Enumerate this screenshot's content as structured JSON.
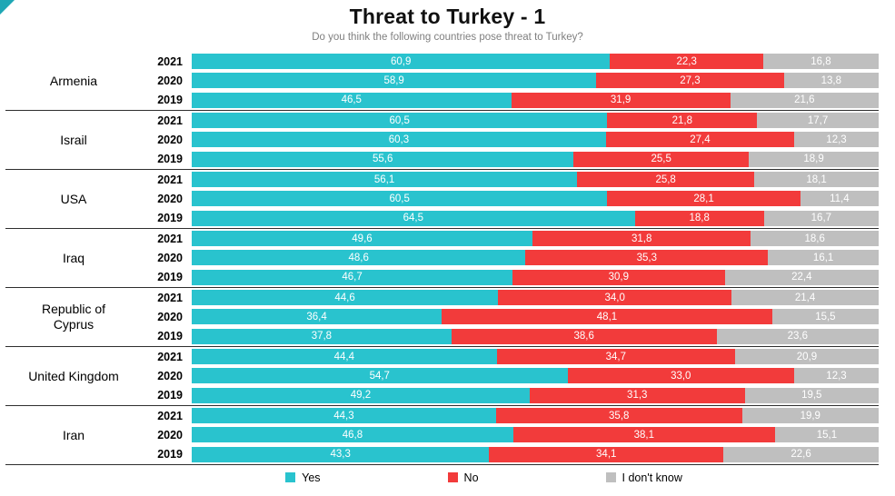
{
  "page": {
    "background": "#ffffff",
    "accent_teal": "#1FA7B5"
  },
  "chart_data": {
    "type": "bar",
    "variant": "horizontal-stacked-100pct",
    "title": "Threat to Turkey - 1",
    "subtitle": "Do you think the following countries pose threat to Turkey?",
    "xlim": [
      0,
      100
    ],
    "legend_position": "bottom",
    "grid": false,
    "number_format": "comma-decimal",
    "series": [
      {
        "key": "yes",
        "name": "Yes",
        "color": "#29C3CE"
      },
      {
        "key": "no",
        "name": "No",
        "color": "#F23B3B"
      },
      {
        "key": "dont-know",
        "name": "I don't know",
        "color": "#BFBFBF"
      }
    ],
    "groups": [
      {
        "country": "Armenia",
        "rows": [
          {
            "year": "2021",
            "values": [
              60.9,
              22.3,
              16.8
            ]
          },
          {
            "year": "2020",
            "values": [
              58.9,
              27.3,
              13.8
            ]
          },
          {
            "year": "2019",
            "values": [
              46.5,
              31.9,
              21.6
            ]
          }
        ]
      },
      {
        "country": "Israil",
        "rows": [
          {
            "year": "2021",
            "values": [
              60.5,
              21.8,
              17.7
            ]
          },
          {
            "year": "2020",
            "values": [
              60.3,
              27.4,
              12.3
            ]
          },
          {
            "year": "2019",
            "values": [
              55.6,
              25.5,
              18.9
            ]
          }
        ]
      },
      {
        "country": "USA",
        "rows": [
          {
            "year": "2021",
            "values": [
              56.1,
              25.8,
              18.1
            ]
          },
          {
            "year": "2020",
            "values": [
              60.5,
              28.1,
              11.4
            ]
          },
          {
            "year": "2019",
            "values": [
              64.5,
              18.8,
              16.7
            ]
          }
        ]
      },
      {
        "country": "Iraq",
        "rows": [
          {
            "year": "2021",
            "values": [
              49.6,
              31.8,
              18.6
            ]
          },
          {
            "year": "2020",
            "values": [
              48.6,
              35.3,
              16.1
            ]
          },
          {
            "year": "2019",
            "values": [
              46.7,
              30.9,
              22.4
            ]
          }
        ]
      },
      {
        "country": "Republic of Cyprus",
        "rows": [
          {
            "year": "2021",
            "values": [
              44.6,
              34.0,
              21.4
            ]
          },
          {
            "year": "2020",
            "values": [
              36.4,
              48.1,
              15.5
            ]
          },
          {
            "year": "2019",
            "values": [
              37.8,
              38.6,
              23.6
            ]
          }
        ]
      },
      {
        "country": "United Kingdom",
        "rows": [
          {
            "year": "2021",
            "values": [
              44.4,
              34.7,
              20.9
            ]
          },
          {
            "year": "2020",
            "values": [
              54.7,
              33.0,
              12.3
            ]
          },
          {
            "year": "2019",
            "values": [
              49.2,
              31.3,
              19.5
            ]
          }
        ]
      },
      {
        "country": "Iran",
        "rows": [
          {
            "year": "2021",
            "values": [
              44.3,
              35.8,
              19.9
            ]
          },
          {
            "year": "2020",
            "values": [
              46.8,
              38.1,
              15.1
            ]
          },
          {
            "year": "2019",
            "values": [
              43.3,
              34.1,
              22.6
            ]
          }
        ]
      }
    ]
  }
}
